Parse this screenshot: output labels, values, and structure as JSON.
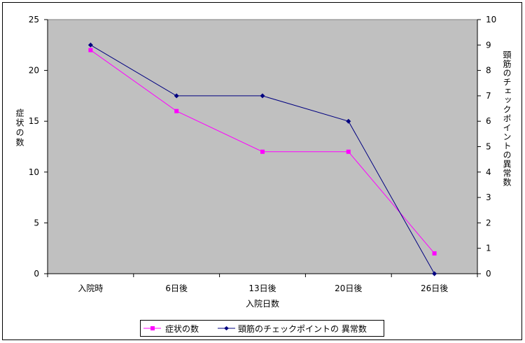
{
  "chart_data": {
    "type": "line",
    "categories": [
      "入院時",
      "6日後",
      "13日後",
      "20日後",
      "26日後"
    ],
    "xlabel": "入院日数",
    "ylabel": "症状の数",
    "y2label": "頸筋のチェックポイントの異常数",
    "ylim": [
      0,
      25
    ],
    "yticks": [
      0,
      5,
      10,
      15,
      20,
      25
    ],
    "y2lim": [
      0,
      10
    ],
    "y2ticks": [
      0,
      1,
      2,
      3,
      4,
      5,
      6,
      7,
      8,
      9,
      10
    ],
    "grid": false,
    "legend": "bottom",
    "plot_background": "#C0C0C0",
    "series": [
      {
        "name": "症状の数",
        "axis": "left",
        "color": "#FF00FF",
        "marker": "square",
        "values": [
          22,
          16,
          12,
          12,
          2
        ]
      },
      {
        "name": "頸筋のチェックポイントの 異常数",
        "axis": "right",
        "color": "#000080",
        "marker": "diamond",
        "values": [
          9,
          7,
          7,
          6,
          0
        ]
      }
    ]
  }
}
